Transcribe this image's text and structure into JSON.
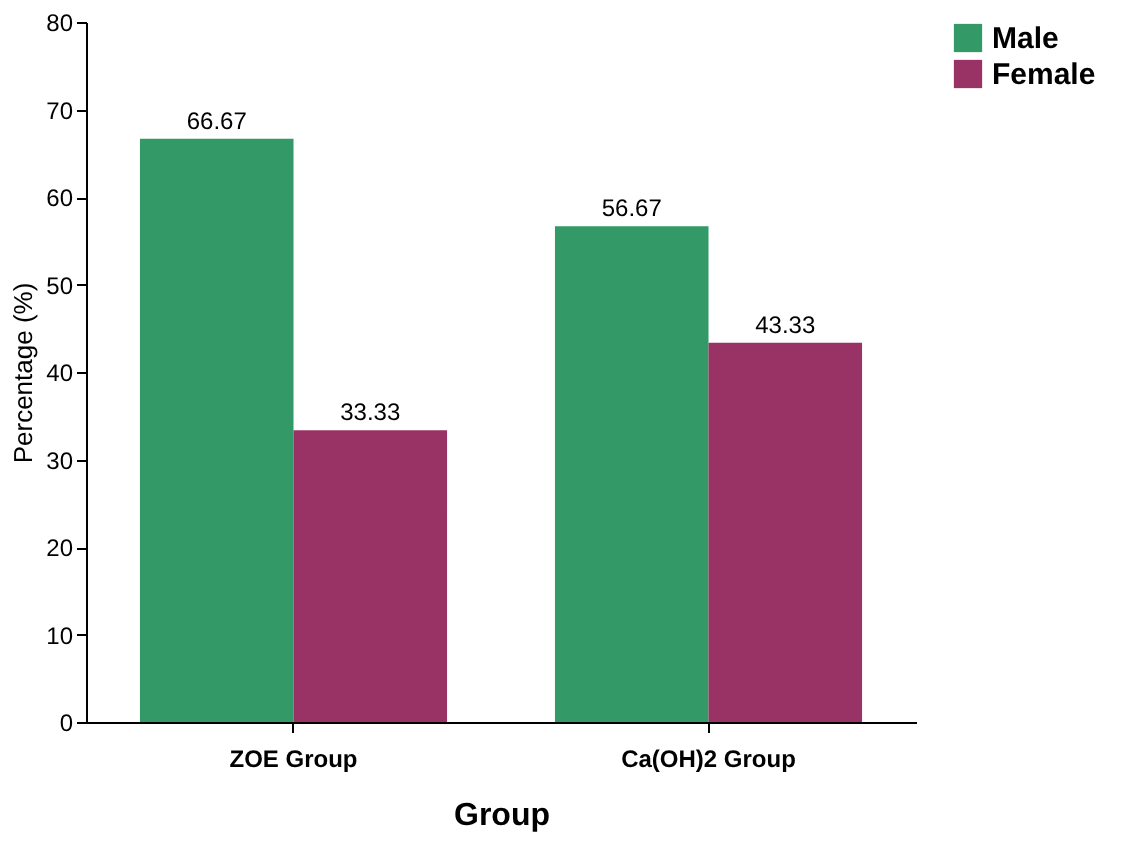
{
  "chart_data": {
    "type": "bar",
    "xlabel": "Group",
    "ylabel": "Percentage (%)",
    "categories": [
      "ZOE Group",
      "Ca(OH)2 Group"
    ],
    "series": [
      {
        "name": "Male",
        "color": "#339966",
        "values": [
          66.67,
          56.67
        ]
      },
      {
        "name": "Female",
        "color": "#993366",
        "values": [
          33.33,
          43.33
        ]
      }
    ],
    "ylim": [
      0,
      80
    ],
    "yticks": [
      0,
      10,
      20,
      30,
      40,
      50,
      60,
      70,
      80
    ],
    "grid": false,
    "legend": "right",
    "data_labels": true
  }
}
